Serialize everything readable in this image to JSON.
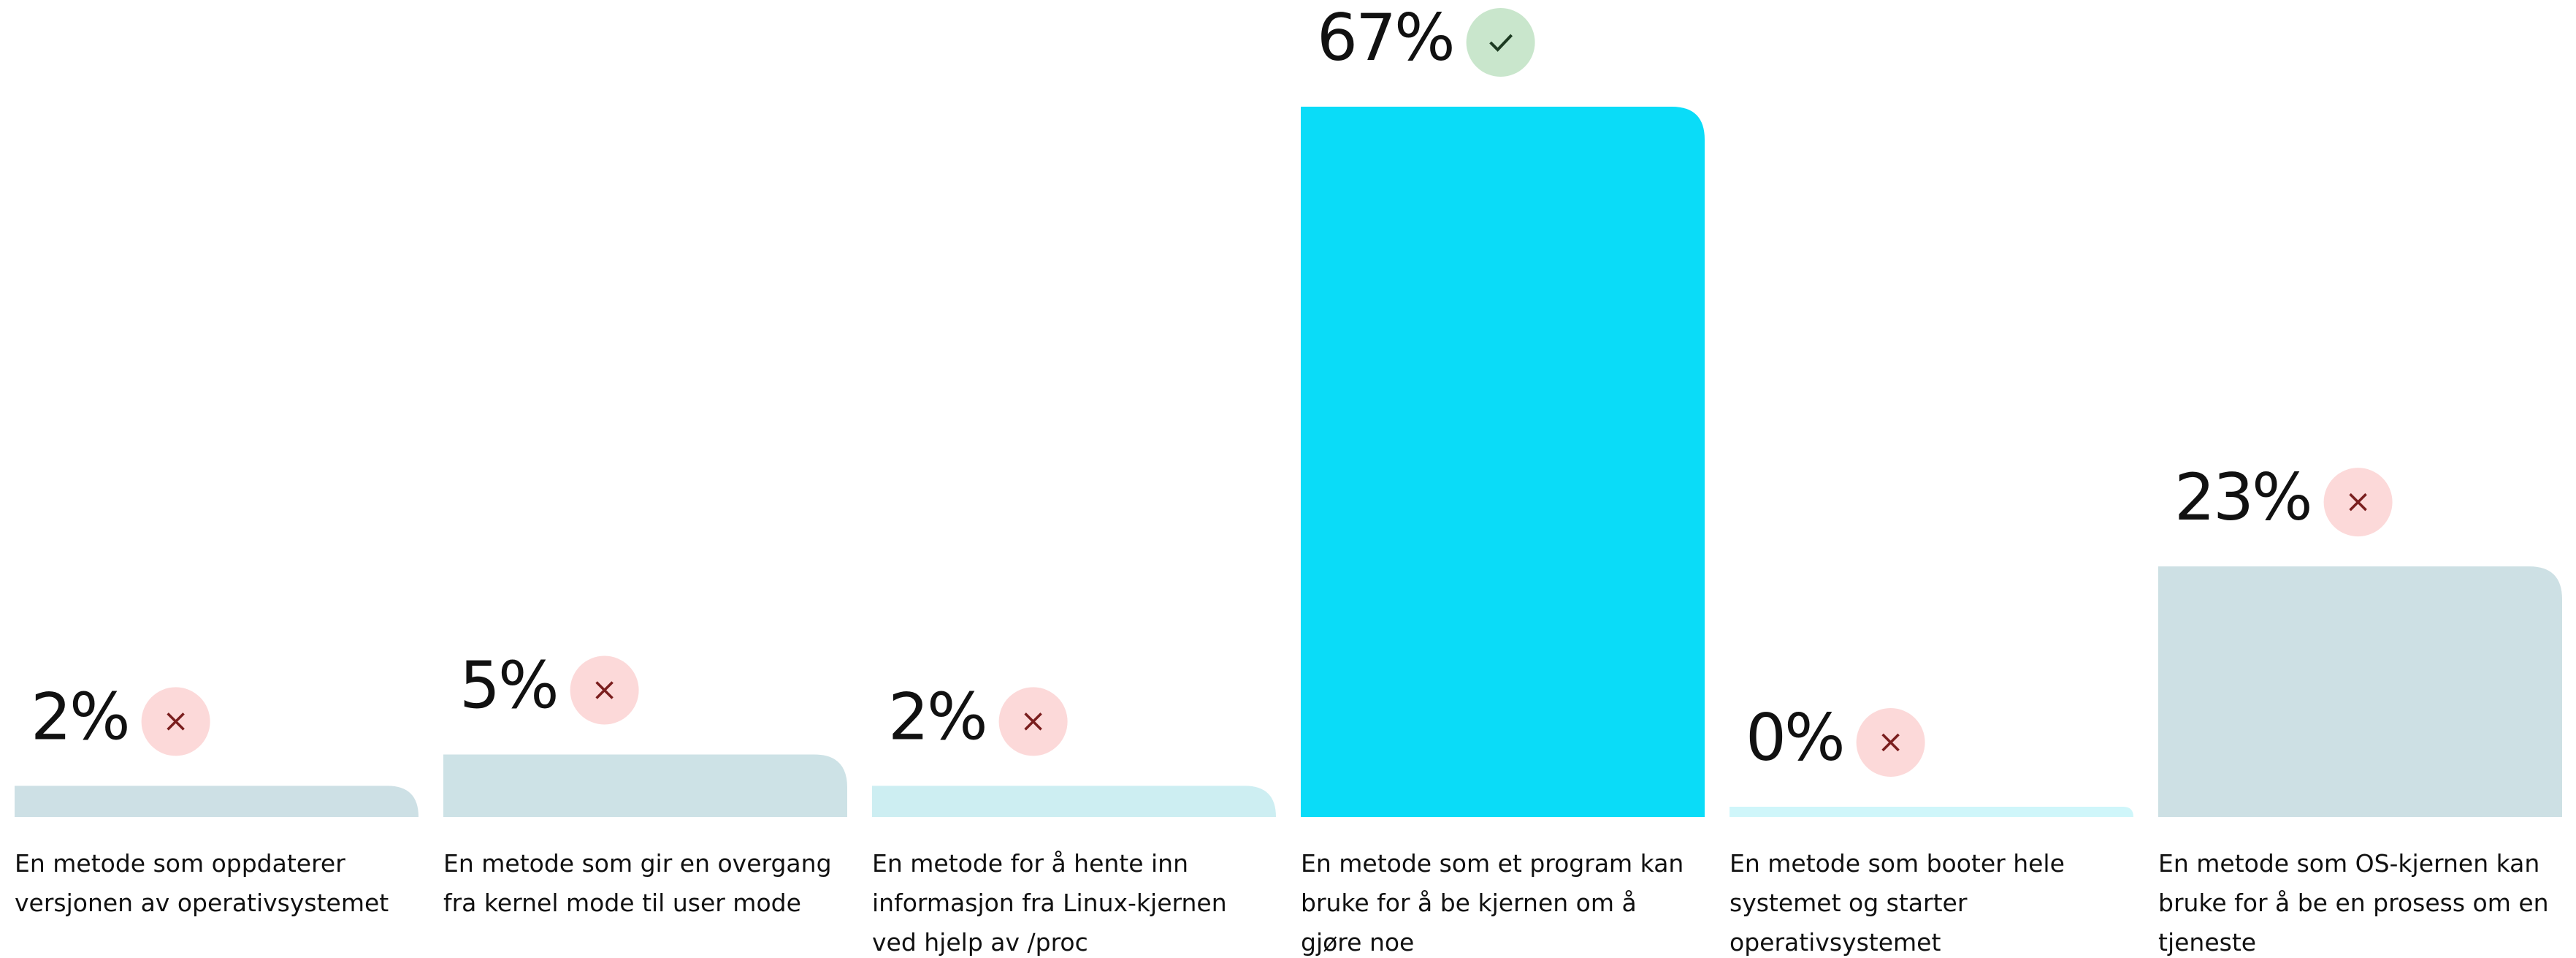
{
  "chart_data": {
    "type": "bar",
    "categories": [
      "En metode som oppdaterer versjonen av operativsystemet",
      "En metode som gir en overgang fra kernel mode til user mode",
      "En metode for å hente inn informasjon fra Linux-kjernen ved hjelp av /proc",
      "En metode som et program kan bruke for å be kjernen om å gjøre noe",
      "En metode som booter hele systemet og starter operativsystemet",
      "En metode som OS-kjernen kan bruke for å be en prosess om en tjeneste"
    ],
    "values": [
      2,
      5,
      2,
      67,
      0,
      23
    ],
    "value_labels": [
      "2%",
      "5%",
      "2%",
      "67%",
      "0%",
      "23%"
    ],
    "colors": [
      "#cde0e5",
      "#cde2e6",
      "#cdeef2",
      "#0adcf8",
      "#cff6fa",
      "#cde0e4"
    ],
    "correct": [
      false,
      false,
      false,
      true,
      false,
      false
    ]
  }
}
